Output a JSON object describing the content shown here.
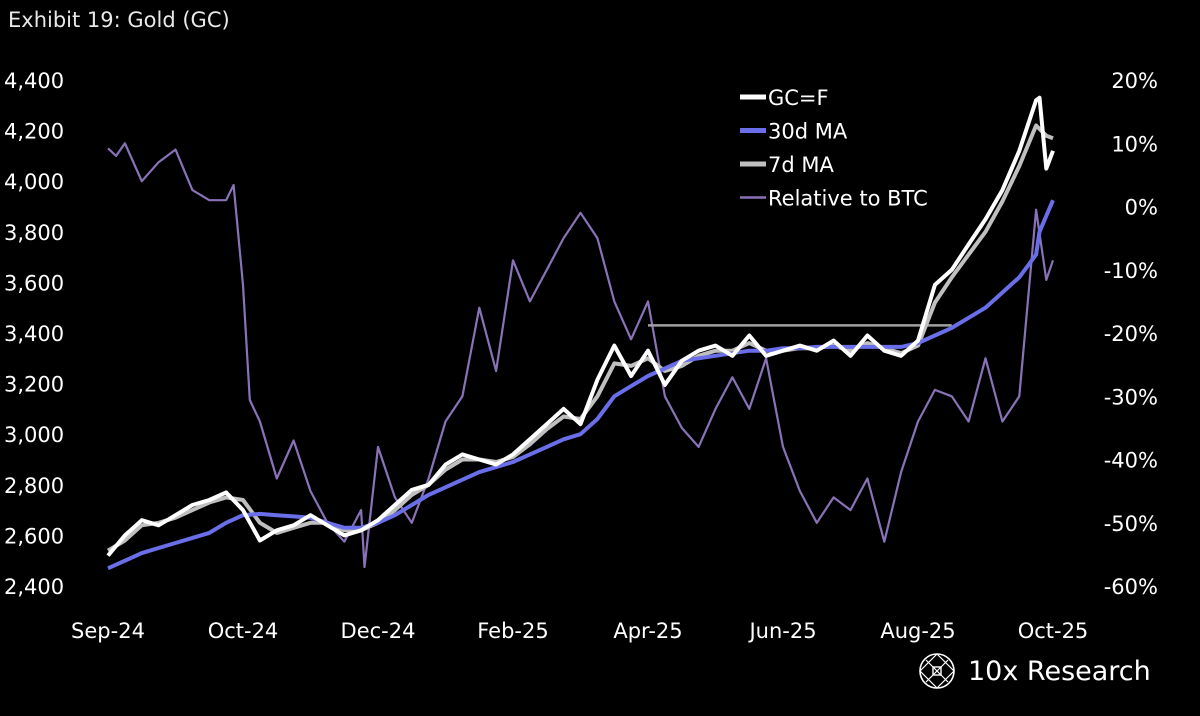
{
  "title": "Exhibit 19: Gold (GC)",
  "brand": "10x Research",
  "chart_data": {
    "type": "line",
    "title": "Exhibit 19: Gold (GC)",
    "x_unit": "tick index (0 = Sep-24, 7 = Oct-25)",
    "x_tick_labels": [
      "Sep-24",
      "Oct-24",
      "Dec-24",
      "Feb-25",
      "Apr-25",
      "Jun-25",
      "Aug-25",
      "Oct-25"
    ],
    "y_left": {
      "range": [
        2400,
        4400
      ],
      "ticks": [
        "2,400",
        "2,600",
        "2,800",
        "3,000",
        "3,200",
        "3,400",
        "3,600",
        "3,800",
        "4,000",
        "4,200",
        "4,400"
      ],
      "tick_values": [
        2400,
        2600,
        2800,
        3000,
        3200,
        3400,
        3600,
        3800,
        4000,
        4200,
        4400
      ]
    },
    "y_right": {
      "range": [
        -60,
        20
      ],
      "ticks": [
        "-60%",
        "-50%",
        "-40%",
        "-30%",
        "-20%",
        "-10%",
        "0%",
        "10%",
        "20%"
      ],
      "tick_values": [
        -60,
        -50,
        -40,
        -30,
        -20,
        -10,
        0,
        10,
        20
      ]
    },
    "legend_position": "top-right",
    "grid": false,
    "colors": {
      "gc": "#ffffff",
      "ma30": "#6a6ee8",
      "ma7": "#bfbfbf",
      "btc": "#8a72b8",
      "resistance": "#a0a0a0"
    },
    "series": [
      {
        "name": "GC=F",
        "axis": "left",
        "step": 0.125,
        "values": [
          2520,
          2600,
          2660,
          2640,
          2680,
          2720,
          2740,
          2770,
          2700,
          2580,
          2620,
          2640,
          2680,
          2640,
          2600,
          2620,
          2660,
          2720,
          2780,
          2800,
          2880,
          2920,
          2900,
          2880,
          2920,
          2980,
          3040,
          3100,
          3040,
          3215,
          3350,
          3230,
          3330,
          3195,
          3290,
          3330,
          3350,
          3310,
          3390,
          3310,
          3330,
          3350,
          3330,
          3370,
          3310,
          3390,
          3330,
          3310,
          3370,
          3590,
          3650,
          3750,
          3850,
          3965,
          4120,
          4320
        ],
        "extra": [
          [
            6.9,
            4330
          ],
          [
            6.95,
            4050
          ],
          [
            7.0,
            4120
          ]
        ]
      },
      {
        "name": "30d MA",
        "axis": "left",
        "step": 0.125,
        "values": [
          2470,
          2500,
          2530,
          2550,
          2570,
          2590,
          2610,
          2650,
          2680,
          2685,
          2680,
          2675,
          2670,
          2650,
          2630,
          2630,
          2650,
          2680,
          2720,
          2760,
          2790,
          2820,
          2850,
          2870,
          2890,
          2920,
          2950,
          2980,
          3000,
          3060,
          3150,
          3190,
          3230,
          3260,
          3290,
          3300,
          3310,
          3320,
          3330,
          3330,
          3340,
          3340,
          3345,
          3345,
          3345,
          3345,
          3345,
          3345,
          3360,
          3390,
          3420,
          3460,
          3500,
          3560,
          3620,
          3710
        ],
        "extra": [
          [
            6.9,
            3800
          ],
          [
            7.0,
            3925
          ]
        ]
      },
      {
        "name": "7d MA",
        "axis": "left",
        "step": 0.125,
        "values": [
          2540,
          2580,
          2640,
          2650,
          2670,
          2700,
          2730,
          2750,
          2740,
          2650,
          2610,
          2630,
          2650,
          2650,
          2620,
          2620,
          2650,
          2700,
          2760,
          2800,
          2860,
          2900,
          2900,
          2890,
          2910,
          2960,
          3020,
          3070,
          3060,
          3150,
          3280,
          3270,
          3300,
          3250,
          3270,
          3310,
          3330,
          3330,
          3360,
          3330,
          3330,
          3340,
          3340,
          3350,
          3330,
          3360,
          3340,
          3320,
          3350,
          3520,
          3620,
          3710,
          3800,
          3920,
          4060,
          4220
        ],
        "extra": [
          [
            6.95,
            4180
          ],
          [
            7.0,
            4170
          ]
        ]
      },
      {
        "name": "Relative to BTC",
        "axis": "right",
        "unit": "%",
        "points": [
          [
            0,
            9.2
          ],
          [
            0.06,
            8
          ],
          [
            0.125,
            10
          ],
          [
            0.25,
            4
          ],
          [
            0.375,
            7
          ],
          [
            0.5,
            9
          ],
          [
            0.625,
            2.6
          ],
          [
            0.75,
            1
          ],
          [
            0.875,
            1
          ],
          [
            0.93,
            3.4
          ],
          [
            1.0,
            -12.4
          ],
          [
            1.05,
            -30.6
          ],
          [
            1.125,
            -34
          ],
          [
            1.25,
            -43
          ],
          [
            1.375,
            -37
          ],
          [
            1.5,
            -45
          ],
          [
            1.625,
            -50
          ],
          [
            1.75,
            -53
          ],
          [
            1.875,
            -48
          ],
          [
            1.9,
            -57
          ],
          [
            2.0,
            -38
          ],
          [
            2.125,
            -46
          ],
          [
            2.25,
            -50
          ],
          [
            2.375,
            -43
          ],
          [
            2.5,
            -34
          ],
          [
            2.625,
            -30
          ],
          [
            2.75,
            -16
          ],
          [
            2.875,
            -26
          ],
          [
            3.0,
            -8.5
          ],
          [
            3.125,
            -15
          ],
          [
            3.25,
            -10
          ],
          [
            3.375,
            -5
          ],
          [
            3.5,
            -1
          ],
          [
            3.625,
            -5
          ],
          [
            3.75,
            -15
          ],
          [
            3.875,
            -21
          ],
          [
            4.0,
            -15
          ],
          [
            4.125,
            -30
          ],
          [
            4.25,
            -35
          ],
          [
            4.375,
            -38
          ],
          [
            4.5,
            -32
          ],
          [
            4.625,
            -27
          ],
          [
            4.75,
            -32
          ],
          [
            4.875,
            -24
          ],
          [
            5.0,
            -38
          ],
          [
            5.125,
            -45
          ],
          [
            5.25,
            -50
          ],
          [
            5.375,
            -46
          ],
          [
            5.5,
            -48
          ],
          [
            5.625,
            -43
          ],
          [
            5.75,
            -53
          ],
          [
            5.875,
            -42
          ],
          [
            6.0,
            -34
          ],
          [
            6.125,
            -29
          ],
          [
            6.25,
            -30
          ],
          [
            6.375,
            -34
          ],
          [
            6.5,
            -24
          ],
          [
            6.625,
            -34
          ],
          [
            6.75,
            -30
          ],
          [
            6.875,
            -0.5
          ],
          [
            6.95,
            -11.6
          ],
          [
            7.0,
            -8.5
          ]
        ]
      }
    ],
    "annotations": [
      {
        "type": "horizontal-line",
        "axis": "left",
        "value": 3430,
        "x_from": 4.0,
        "x_to": 6.25
      }
    ]
  }
}
